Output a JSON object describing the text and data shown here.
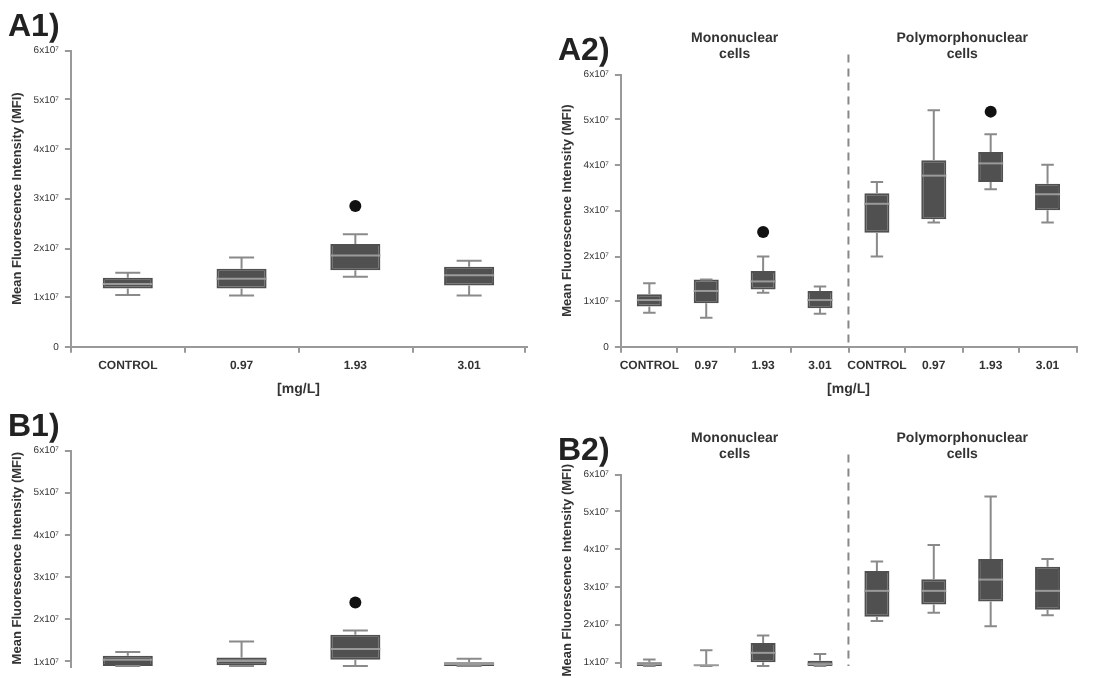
{
  "chart_data": [
    {
      "type": "box",
      "title": "A1)",
      "xlabel": "[mg/L]",
      "ylabel": "Mean Fluorescence Intensity (MFI)",
      "color": "#505050",
      "grid": false,
      "categories": [
        "CONTROL",
        "0.97",
        "1.93",
        "3.01"
      ],
      "ylim": [
        0,
        60000000
      ],
      "yticks": [
        {
          "value": 0,
          "label": "0"
        },
        {
          "value": 10000000,
          "label": "1x10⁷"
        },
        {
          "value": 20000000,
          "label": "2x10⁷"
        },
        {
          "value": 30000000,
          "label": "3x10⁷"
        },
        {
          "value": 40000000,
          "label": "4x10⁷"
        },
        {
          "value": 50000000,
          "label": "5x10⁷"
        },
        {
          "value": 60000000,
          "label": "6x10⁷"
        }
      ],
      "boxes": [
        {
          "low": 10500000,
          "q1": 11800000,
          "median": 12700000,
          "q3": 14000000,
          "high": 15000000
        },
        {
          "low": 10400000,
          "q1": 11800000,
          "median": 13800000,
          "q3": 15800000,
          "high": 18100000
        },
        {
          "low": 14200000,
          "q1": 15500000,
          "median": 18500000,
          "q3": 20800000,
          "high": 22800000,
          "outliers": [
            28500000
          ]
        },
        {
          "low": 10400000,
          "q1": 12400000,
          "median": 14500000,
          "q3": 16200000,
          "high": 17400000
        }
      ]
    },
    {
      "type": "box",
      "title": "A2)",
      "xlabel": "[mg/L]",
      "ylabel": "Mean Fluorescence Intensity (MFI)",
      "color": "#505050",
      "grid": false,
      "categories": [
        "CONTROL",
        "0.97",
        "1.93",
        "3.01",
        "CONTROL",
        "0.97",
        "1.93",
        "3.01"
      ],
      "annotations": [
        "Mononuclear cells",
        "Polymorphonuclear cells"
      ],
      "ylim": [
        0,
        60000000
      ],
      "yticks": [
        {
          "value": 0,
          "label": "0"
        },
        {
          "value": 10000000,
          "label": "1x10⁷"
        },
        {
          "value": 20000000,
          "label": "2x10⁷"
        },
        {
          "value": 30000000,
          "label": "3x10⁷"
        },
        {
          "value": 40000000,
          "label": "4x10⁷"
        },
        {
          "value": 50000000,
          "label": "5x10⁷"
        },
        {
          "value": 60000000,
          "label": "6x10⁷"
        }
      ],
      "boxes": [
        {
          "low": 7500000,
          "q1": 8900000,
          "median": 10300000,
          "q3": 11600000,
          "high": 14000000
        },
        {
          "low": 6400000,
          "q1": 9600000,
          "median": 12300000,
          "q3": 14800000,
          "high": 14800000
        },
        {
          "low": 11900000,
          "q1": 12600000,
          "median": 14400000,
          "q3": 16700000,
          "high": 19900000,
          "outliers": [
            25300000
          ]
        },
        {
          "low": 7300000,
          "q1": 8500000,
          "median": 10300000,
          "q3": 12300000,
          "high": 13300000
        },
        {
          "low": 19900000,
          "q1": 25100000,
          "median": 31500000,
          "q3": 33800000,
          "high": 36300000
        },
        {
          "low": 27400000,
          "q1": 28100000,
          "median": 37700000,
          "q3": 41100000,
          "high": 52100000
        },
        {
          "low": 34700000,
          "q1": 36300000,
          "median": 40400000,
          "q3": 42900000,
          "high": 46800000,
          "outliers": [
            51800000
          ]
        },
        {
          "low": 27400000,
          "q1": 30100000,
          "median": 33600000,
          "q3": 35900000,
          "high": 40100000
        }
      ]
    },
    {
      "type": "box",
      "title": "B1)",
      "ylabel": "Mean Fluorescence Intensity (MFI)",
      "color": "#505050",
      "grid": false,
      "categories": [
        null,
        null,
        null,
        null
      ],
      "ylim": [
        9000000,
        60000000
      ],
      "yticks": [
        {
          "value": 10000000,
          "label": "1x10⁷"
        },
        {
          "value": 20000000,
          "label": "2x10⁷"
        },
        {
          "value": 30000000,
          "label": "3x10⁷"
        },
        {
          "value": 40000000,
          "label": "4x10⁷"
        },
        {
          "value": 50000000,
          "label": "5x10⁷"
        },
        {
          "value": 60000000,
          "label": "6x10⁷"
        }
      ],
      "boxes": [
        {
          "low": 9000000,
          "q1": 9000000,
          "median": 10500000,
          "q3": 11400000,
          "high": 12300000
        },
        {
          "low": 9000000,
          "q1": 9200000,
          "median": 10200000,
          "q3": 11000000,
          "high": 14800000
        },
        {
          "low": 9000000,
          "q1": 10500000,
          "median": 13000000,
          "q3": 16400000,
          "high": 17400000,
          "outliers": [
            24000000
          ]
        },
        {
          "low": 9000000,
          "q1": 9000000,
          "median": 9500000,
          "q3": 9900000,
          "high": 10700000
        }
      ]
    },
    {
      "type": "box",
      "title": "B2)",
      "ylabel": "Mean Fluorescence Intensity (MFI)",
      "color": "#505050",
      "grid": false,
      "categories": [
        null,
        null,
        null,
        null,
        null,
        null,
        null,
        null
      ],
      "annotations": [
        "Mononuclear cells",
        "Polymorphonuclear cells"
      ],
      "ylim": [
        9000000,
        60000000
      ],
      "yticks": [
        {
          "value": 10000000,
          "label": "1x10⁷"
        },
        {
          "value": 20000000,
          "label": "2x10⁷"
        },
        {
          "value": 30000000,
          "label": "3x10⁷"
        },
        {
          "value": 40000000,
          "label": "4x10⁷"
        },
        {
          "value": 50000000,
          "label": "5x10⁷"
        },
        {
          "value": 60000000,
          "label": "6x10⁷"
        }
      ],
      "boxes": [
        {
          "low": 9000000,
          "q1": 9000000,
          "median": 9500000,
          "q3": 10000000,
          "high": 10700000
        },
        {
          "low": 9000000,
          "q1": 9000000,
          "median": 9200000,
          "q3": 9300000,
          "high": 13200000
        },
        {
          "low": 9000000,
          "q1": 10000000,
          "median": 12500000,
          "q3": 15100000,
          "high": 17100000
        },
        {
          "low": 9000000,
          "q1": 9000000,
          "median": 9500000,
          "q3": 10400000,
          "high": 12200000
        },
        {
          "low": 21000000,
          "q1": 22100000,
          "median": 29000000,
          "q3": 34300000,
          "high": 36800000
        },
        {
          "low": 23200000,
          "q1": 25400000,
          "median": 29000000,
          "q3": 32100000,
          "high": 41200000
        },
        {
          "low": 19600000,
          "q1": 26200000,
          "median": 32000000,
          "q3": 37500000,
          "high": 54100000
        },
        {
          "low": 22500000,
          "q1": 24000000,
          "median": 29000000,
          "q3": 35400000,
          "high": 37500000
        }
      ]
    }
  ]
}
